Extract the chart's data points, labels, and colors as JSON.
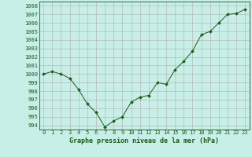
{
  "x": [
    0,
    1,
    2,
    3,
    4,
    5,
    6,
    7,
    8,
    9,
    10,
    11,
    12,
    13,
    14,
    15,
    16,
    17,
    18,
    19,
    20,
    21,
    22,
    23
  ],
  "y": [
    1000.0,
    1000.3,
    1000.0,
    999.5,
    998.2,
    996.5,
    995.5,
    993.8,
    994.5,
    995.0,
    996.7,
    997.3,
    997.5,
    999.0,
    998.8,
    1000.5,
    1001.5,
    1002.7,
    1004.6,
    1005.0,
    1006.0,
    1007.0,
    1007.1,
    1007.6
  ],
  "line_color": "#1a5c1a",
  "marker": "D",
  "marker_size": 2.0,
  "bg_color": "#c8eee8",
  "grid_color": "#b0b0b0",
  "xlabel": "Graphe pression niveau de la mer (hPa)",
  "xlabel_fontsize": 6.0,
  "xlabel_color": "#1a5c1a",
  "tick_color": "#1a5c1a",
  "tick_fontsize": 5.0,
  "ylim": [
    993.5,
    1008.5
  ],
  "yticks": [
    994,
    995,
    996,
    997,
    998,
    999,
    1000,
    1001,
    1002,
    1003,
    1004,
    1005,
    1006,
    1007,
    1008
  ],
  "xlim": [
    -0.5,
    23.5
  ],
  "xticks": [
    0,
    1,
    2,
    3,
    4,
    5,
    6,
    7,
    8,
    9,
    10,
    11,
    12,
    13,
    14,
    15,
    16,
    17,
    18,
    19,
    20,
    21,
    22,
    23
  ]
}
